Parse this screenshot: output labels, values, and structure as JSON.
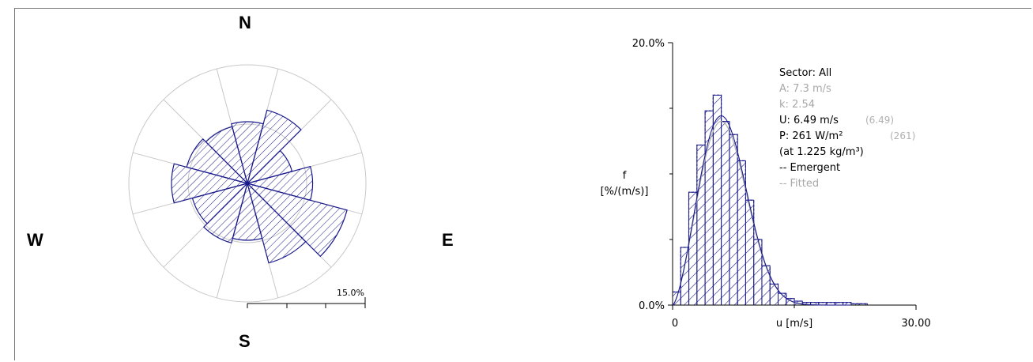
{
  "compass": {
    "north": "N",
    "south": "S",
    "west": "W",
    "east": "E"
  },
  "colors": {
    "bar": "#1a1a8c",
    "grid": "#c8c8c8",
    "fitted": "#b0b0b0",
    "text": "#000000",
    "muted": "#a0a0a0"
  },
  "chart_data": [
    {
      "type": "polar-bar",
      "scale_label": "15.0%",
      "sectors": 12,
      "sector_width_deg": 30,
      "direction_deg": [
        0,
        30,
        60,
        90,
        120,
        150,
        180,
        210,
        240,
        270,
        300,
        330
      ],
      "frequency_percent": [
        10.4,
        12.8,
        7.8,
        11.0,
        17.4,
        13.9,
        9.6,
        10.4,
        9.6,
        12.8,
        10.6,
        9.9
      ],
      "ring_percent": [
        10,
        20
      ],
      "rmax_percent": 20
    },
    {
      "type": "bar",
      "ylabel_line1": "f",
      "ylabel_line2": "[%/(m/s)]",
      "xlabel": "u [m/s]",
      "xlim": [
        0,
        30
      ],
      "ylim": [
        0,
        20
      ],
      "x_tick_labels": [
        "0",
        "30.00"
      ],
      "y_tick_labels": [
        "0.0%",
        "20.0%"
      ],
      "bin_width": 1,
      "bins_start": [
        0,
        1,
        2,
        3,
        4,
        5,
        6,
        7,
        8,
        9,
        10,
        11,
        12,
        13,
        14,
        15,
        16,
        17,
        18,
        19,
        20,
        21,
        22,
        23
      ],
      "values": [
        1.0,
        4.4,
        8.6,
        12.2,
        14.8,
        16.0,
        14.0,
        13.0,
        11.0,
        8.0,
        5.0,
        3.0,
        1.6,
        0.9,
        0.5,
        0.3,
        0.2,
        0.2,
        0.2,
        0.2,
        0.2,
        0.2,
        0.1,
        0.1
      ],
      "weibull_A": 7.3,
      "weibull_k": 2.54,
      "legend": {
        "sector": "Sector: All",
        "A": "A: 7.3 m/s",
        "k": "k: 2.54",
        "U": "U: 6.49 m/s",
        "U_fit": "(6.49)",
        "P": "P: 261 W/m²",
        "P_fit": "(261)",
        "density": "(at 1.225 kg/m³)",
        "emergent": "-- Emergent",
        "fitted": "-- Fitted"
      }
    }
  ]
}
